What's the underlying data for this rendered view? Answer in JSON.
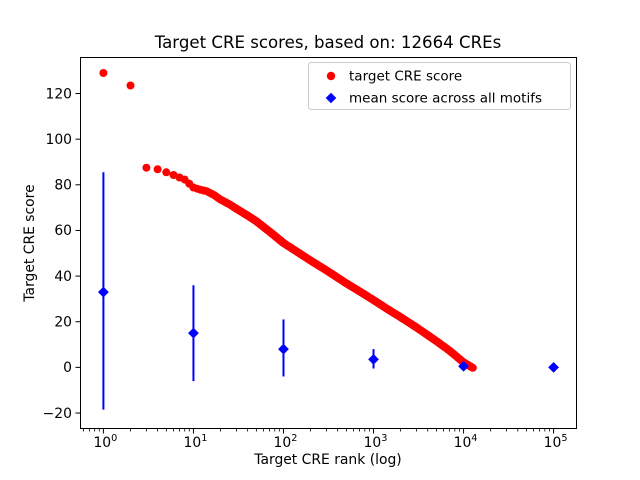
{
  "chart_data": {
    "type": "scatter",
    "title": "Target CRE scores, based on: 12664 CREs",
    "xlabel": "Target CRE rank (log)",
    "ylabel": "Target CRE score",
    "xscale": "log",
    "xlim_log10": [
      -0.26,
      5.26
    ],
    "ylim": [
      -27,
      136
    ],
    "x_ticks": [
      1,
      10,
      100,
      1000,
      10000,
      100000
    ],
    "y_ticks": [
      -20,
      0,
      20,
      40,
      60,
      80,
      100,
      120
    ],
    "grid": false,
    "legend_position": "upper right",
    "colors": {
      "target": "#ff0000",
      "mean": "#0000ff",
      "legend_border": "#cccccc",
      "spine": "#000000"
    },
    "series": [
      {
        "name": "target CRE score",
        "color": "#ff0000",
        "marker": "circle",
        "total_points": 12664,
        "max_rank": 12664,
        "control_points": [
          [
            1,
            129
          ],
          [
            2,
            123.5
          ],
          [
            3,
            87.5
          ],
          [
            4,
            86.8
          ],
          [
            5,
            85.5
          ],
          [
            6,
            84.3
          ],
          [
            7,
            83.2
          ],
          [
            8,
            82.3
          ],
          [
            9,
            80.5
          ],
          [
            10,
            78.8
          ],
          [
            12,
            77.8
          ],
          [
            14,
            77.2
          ],
          [
            17,
            75.5
          ],
          [
            20,
            73.5
          ],
          [
            25,
            71.5
          ],
          [
            30,
            69.5
          ],
          [
            40,
            66.5
          ],
          [
            50,
            64
          ],
          [
            70,
            59.5
          ],
          [
            100,
            54.5
          ],
          [
            150,
            50
          ],
          [
            200,
            46.8
          ],
          [
            300,
            42.5
          ],
          [
            500,
            36.8
          ],
          [
            700,
            33.3
          ],
          [
            1000,
            29.5
          ],
          [
            1500,
            25
          ],
          [
            2000,
            22
          ],
          [
            3000,
            17.5
          ],
          [
            5000,
            11.5
          ],
          [
            7000,
            7.3
          ],
          [
            10000,
            2.2
          ],
          [
            12664,
            -0.2
          ]
        ]
      },
      {
        "name": "mean score across all motifs",
        "color": "#0000ff",
        "marker": "diamond",
        "points": [
          {
            "x": 1,
            "y": 33,
            "err_lo": -18.5,
            "err_hi": 85.5
          },
          {
            "x": 10,
            "y": 15,
            "err_lo": -6,
            "err_hi": 36
          },
          {
            "x": 100,
            "y": 8,
            "err_lo": -4,
            "err_hi": 21
          },
          {
            "x": 1000,
            "y": 3.5,
            "err_lo": -0.5,
            "err_hi": 8
          },
          {
            "x": 10000,
            "y": 0.5,
            "err_lo": -1,
            "err_hi": 2.5
          },
          {
            "x": 100000,
            "y": 0,
            "err_lo": 0,
            "err_hi": 0
          }
        ]
      }
    ]
  }
}
